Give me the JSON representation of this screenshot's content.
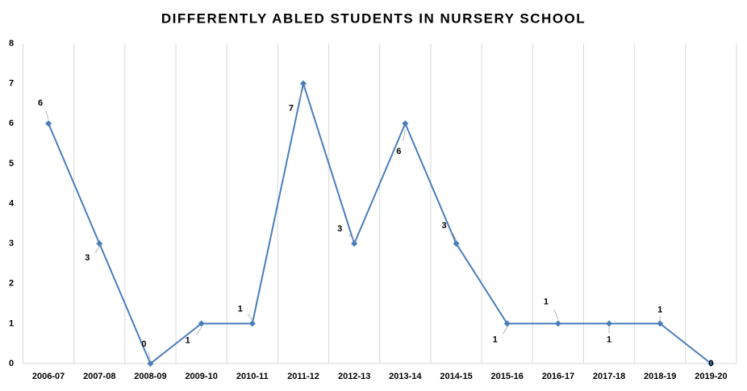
{
  "chart_data": {
    "type": "line",
    "title": "DIFFERENTLY ABLED STUDENTS IN NURSERY SCHOOL",
    "categories": [
      "2006-07",
      "2007-08",
      "2008-09",
      "2009-10",
      "2010-11",
      "2011-12",
      "2012-13",
      "2013-14",
      "2014-15",
      "2015-16",
      "2016-17",
      "2017-18",
      "2018-19",
      "2019-20"
    ],
    "series": [
      {
        "color": "#4a7ebb",
        "values": [
          6,
          3,
          0,
          1,
          1,
          7,
          3,
          6,
          3,
          1,
          1,
          1,
          1,
          0
        ]
      }
    ],
    "ylim": [
      0,
      8
    ],
    "yticks": [
      0,
      1,
      2,
      3,
      4,
      5,
      6,
      7,
      8
    ],
    "grid": true
  }
}
